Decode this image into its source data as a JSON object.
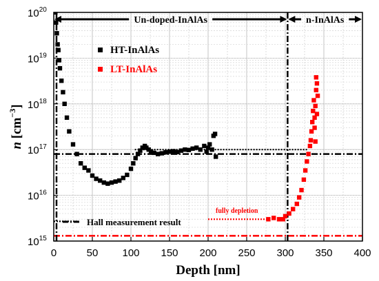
{
  "chart_data": {
    "type": "scatter",
    "xlabel": "Depth [nm]",
    "ylabel": {
      "base": "n",
      "unit_open": " [cm",
      "unit_exp": "−3",
      "unit_close": "]"
    },
    "x_range": [
      0,
      400
    ],
    "y_range_log10": [
      15,
      20
    ],
    "y_scale": "log",
    "grid": true,
    "x_ticks": [
      0,
      50,
      100,
      150,
      200,
      250,
      300,
      350,
      400
    ],
    "y_ticks": [
      {
        "base": "10",
        "exp": "15"
      },
      {
        "base": "10",
        "exp": "16"
      },
      {
        "base": "10",
        "exp": "17"
      },
      {
        "base": "10",
        "exp": "18"
      },
      {
        "base": "10",
        "exp": "19"
      },
      {
        "base": "10",
        "exp": "20"
      }
    ],
    "legend": {
      "placement": "upper-left",
      "entries": [
        {
          "name": "HT-InAlAs",
          "color": "#000000"
        },
        {
          "name": "LT-InAlAs",
          "color": "#ff0000"
        }
      ]
    },
    "series": [
      {
        "name": "HT-InAlAs",
        "color": "#000000",
        "points": [
          [
            2,
            1e+20
          ],
          [
            3,
            6e+19
          ],
          [
            4,
            3.5e+19
          ],
          [
            5,
            2e+19
          ],
          [
            6,
            1.5e+19
          ],
          [
            7,
            9e+18
          ],
          [
            8,
            6e+18
          ],
          [
            10,
            3.2e+18
          ],
          [
            12,
            1.8e+18
          ],
          [
            14,
            1e+18
          ],
          [
            17,
            5e+17
          ],
          [
            20,
            2.5e+17
          ],
          [
            25,
            1.3e+17
          ],
          [
            30,
            8e+16
          ],
          [
            35,
            5e+16
          ],
          [
            40,
            4e+16
          ],
          [
            45,
            3.5e+16
          ],
          [
            50,
            2.7e+16
          ],
          [
            55,
            2.3e+16
          ],
          [
            60,
            2.1e+16
          ],
          [
            65,
            1.9e+16
          ],
          [
            70,
            1.8e+16
          ],
          [
            75,
            1.9e+16
          ],
          [
            80,
            2e+16
          ],
          [
            85,
            2.1e+16
          ],
          [
            90,
            2.4e+16
          ],
          [
            95,
            2.8e+16
          ],
          [
            100,
            3.8e+16
          ],
          [
            103,
            5e+16
          ],
          [
            106,
            6.5e+16
          ],
          [
            109,
            8e+16
          ],
          [
            112,
            9.5e+16
          ],
          [
            115,
            1.1e+17
          ],
          [
            118,
            1.2e+17
          ],
          [
            120,
            1.1e+17
          ],
          [
            123,
            1e+17
          ],
          [
            126,
            9e+16
          ],
          [
            130,
            8.5e+16
          ],
          [
            135,
            8e+16
          ],
          [
            140,
            8.3e+16
          ],
          [
            145,
            8.7e+16
          ],
          [
            150,
            9e+16
          ],
          [
            155,
            9.2e+16
          ],
          [
            160,
            8.8e+16
          ],
          [
            165,
            9.5e+16
          ],
          [
            170,
            1e+17
          ],
          [
            175,
            9.8e+16
          ],
          [
            180,
            1.05e+17
          ],
          [
            185,
            1.1e+17
          ],
          [
            190,
            1e+17
          ],
          [
            195,
            1.2e+17
          ],
          [
            198,
            9e+16
          ],
          [
            200,
            1.1e+17
          ],
          [
            202,
            1.3e+17
          ],
          [
            205,
            1e+17
          ],
          [
            207,
            2e+17
          ],
          [
            209,
            2.2e+17
          ],
          [
            210,
            7e+16
          ]
        ]
      },
      {
        "name": "LT-InAlAs",
        "color": "#ff0000",
        "points": [
          [
            278,
            3000000000000000.0
          ],
          [
            285,
            3200000000000000.0
          ],
          [
            292,
            3000000000000000.0
          ],
          [
            297,
            3000000000000000.0
          ],
          [
            300,
            3500000000000000.0
          ],
          [
            305,
            4000000000000000.0
          ],
          [
            310,
            5000000000000000.0
          ],
          [
            315,
            6500000000000000.0
          ],
          [
            318,
            9000000000000000.0
          ],
          [
            321,
            1.3e+16
          ],
          [
            324,
            2.2e+16
          ],
          [
            326,
            3.5e+16
          ],
          [
            328,
            5.5e+16
          ],
          [
            330,
            8e+16
          ],
          [
            332,
            1.2e+17
          ],
          [
            333,
            1.6e+17
          ],
          [
            334,
            2.5e+17
          ],
          [
            335,
            4e+17
          ],
          [
            336,
            7e+17
          ],
          [
            337,
            1.2e+18
          ],
          [
            338,
            3e+17
          ],
          [
            338,
            5e+17
          ],
          [
            339,
            1.5e+17
          ],
          [
            339,
            9e+17
          ],
          [
            340,
            2e+18
          ],
          [
            340,
            3.8e+18
          ],
          [
            341,
            6e+17
          ],
          [
            341,
            2.8e+18
          ],
          [
            342,
            1.5e+18
          ]
        ]
      }
    ],
    "reference_lines": [
      {
        "name": "HT level (dash-dot, black)",
        "y": 8e+16,
        "color": "#000000",
        "style": "dashdot",
        "x_from": 0,
        "x_to": 400
      },
      {
        "name": "HT level (dotted, black)",
        "y": 1e+17,
        "color": "#000000",
        "style": "dotted",
        "x_from": 105,
        "x_to": 330
      },
      {
        "name": "Hall level (dotted, black)",
        "y": 2700000000000000.0,
        "color": "#000000",
        "style": "dotted",
        "x_from": 0,
        "x_to": 30
      },
      {
        "name": "LT level (dotted, red)",
        "y": 3000000000000000.0,
        "color": "#ff0000",
        "style": "dotted",
        "x_from": 200,
        "x_to": 300
      },
      {
        "name": "LT level (dash-dot, red)",
        "y": 1300000000000000.0,
        "color": "#ff0000",
        "style": "dashdot",
        "x_from": 0,
        "x_to": 400
      }
    ],
    "vertical_lines": [
      {
        "x": 0,
        "style": "dashdot",
        "color": "#000000"
      },
      {
        "x": 303,
        "style": "dashdot",
        "color": "#000000"
      }
    ],
    "region_arrows": [
      {
        "label": "Un-doped-InAlAs",
        "x_from": 0,
        "x_to": 303,
        "y_log": 19.85
      },
      {
        "label": "n-InAlAs",
        "x_from": 303,
        "x_to": 400,
        "y_log": 19.85
      }
    ],
    "annotations": {
      "hall": "Hall measurement result",
      "fully_depletion": "fully depletion"
    }
  }
}
